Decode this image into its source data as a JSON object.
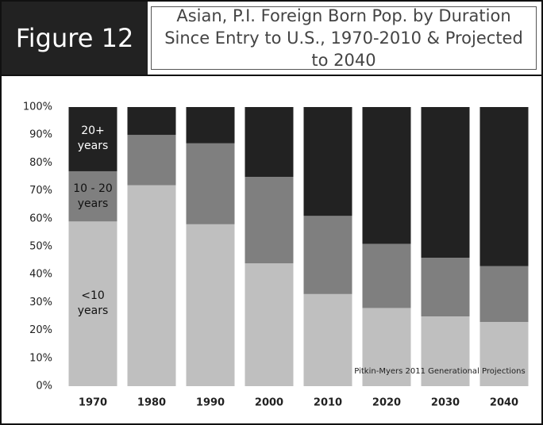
{
  "header": {
    "figure": "Figure 12"
  },
  "chart_data": {
    "type": "stacked_bar",
    "title": "Asian, P.I. Foreign Born Pop. by Duration Since Entry to U.S., 1970-2010 & Projected to 2040",
    "categories": [
      "1970",
      "1980",
      "1990",
      "2000",
      "2010",
      "2020",
      "2030",
      "2040"
    ],
    "series": [
      {
        "name": "<10 years",
        "color": "#bfbfbf",
        "values": [
          59,
          72,
          58,
          44,
          33,
          28,
          25,
          23
        ]
      },
      {
        "name": "10 - 20 years",
        "color": "#7f7f7f",
        "values": [
          18,
          18,
          29,
          31,
          28,
          23,
          21,
          20
        ]
      },
      {
        "name": "20+ years",
        "color": "#222222",
        "values": [
          23,
          10,
          13,
          25,
          39,
          49,
          54,
          57
        ]
      }
    ],
    "ylim": [
      0,
      100
    ],
    "yticks": [
      {
        "value": 0,
        "label": "0%"
      },
      {
        "value": 10,
        "label": "10%"
      },
      {
        "value": 20,
        "label": "20%"
      },
      {
        "value": 30,
        "label": "30%"
      },
      {
        "value": 40,
        "label": "40%"
      },
      {
        "value": 50,
        "label": "50%"
      },
      {
        "value": 60,
        "label": "60%"
      },
      {
        "value": 70,
        "label": "70%"
      },
      {
        "value": 80,
        "label": "80%"
      },
      {
        "value": 90,
        "label": "90%"
      },
      {
        "value": 100,
        "label": "100%"
      }
    ],
    "annotation": "Pitkin-Myers 2011 Generational Projections"
  }
}
